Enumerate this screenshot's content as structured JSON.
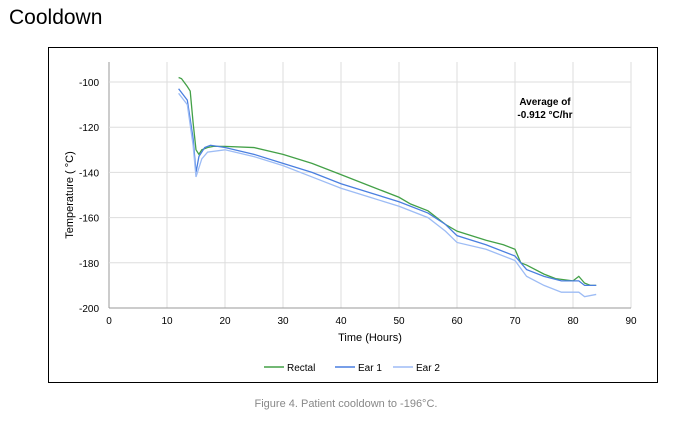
{
  "page_title": "Cooldown",
  "caption": "Figure 4. Patient cooldown to -196°C.",
  "chart_data": {
    "type": "line",
    "title": "",
    "xlabel": "Time (Hours)",
    "ylabel": "Temperature ( °C)",
    "xlim": [
      0,
      90
    ],
    "ylim": [
      -200,
      -95
    ],
    "xticks": [
      0,
      10,
      20,
      30,
      40,
      50,
      60,
      70,
      80,
      90
    ],
    "yticks": [
      -100,
      -120,
      -140,
      -160,
      -180,
      -200
    ],
    "grid": true,
    "legend_position": "bottom",
    "annotation": [
      "Average of",
      "-0.912 °C/hr"
    ],
    "series": [
      {
        "name": "Rectal",
        "color": "#43a047",
        "points": [
          [
            12,
            -98
          ],
          [
            12.5,
            -98.5
          ],
          [
            13.5,
            -102
          ],
          [
            14,
            -104
          ],
          [
            14.5,
            -118
          ],
          [
            15,
            -130
          ],
          [
            15.5,
            -132
          ],
          [
            16,
            -130
          ],
          [
            17,
            -129
          ],
          [
            18,
            -128.5
          ],
          [
            20,
            -128.5
          ],
          [
            25,
            -129
          ],
          [
            30,
            -132
          ],
          [
            35,
            -136
          ],
          [
            40,
            -141
          ],
          [
            45,
            -146
          ],
          [
            50,
            -151
          ],
          [
            52,
            -154
          ],
          [
            55,
            -157
          ],
          [
            58,
            -163
          ],
          [
            60,
            -166
          ],
          [
            65,
            -170
          ],
          [
            68,
            -172
          ],
          [
            70,
            -174
          ],
          [
            71,
            -180
          ],
          [
            72,
            -181
          ],
          [
            75,
            -185
          ],
          [
            77,
            -187
          ],
          [
            80,
            -188
          ],
          [
            81,
            -186
          ],
          [
            82,
            -189
          ],
          [
            83,
            -190
          ],
          [
            84,
            -190
          ]
        ]
      },
      {
        "name": "Ear 1",
        "color": "#4a7fe0",
        "points": [
          [
            12,
            -103
          ],
          [
            13.5,
            -108
          ],
          [
            14.5,
            -125
          ],
          [
            15,
            -140
          ],
          [
            15.5,
            -133
          ],
          [
            16.5,
            -129
          ],
          [
            17.5,
            -128
          ],
          [
            20,
            -129
          ],
          [
            25,
            -132
          ],
          [
            30,
            -136
          ],
          [
            35,
            -140
          ],
          [
            40,
            -145
          ],
          [
            45,
            -149
          ],
          [
            50,
            -153
          ],
          [
            55,
            -158
          ],
          [
            58,
            -163
          ],
          [
            60,
            -168
          ],
          [
            65,
            -172
          ],
          [
            70,
            -177
          ],
          [
            72,
            -183
          ],
          [
            75,
            -186
          ],
          [
            78,
            -188
          ],
          [
            81,
            -188
          ],
          [
            82,
            -190
          ],
          [
            84,
            -190
          ]
        ]
      },
      {
        "name": "Ear 2",
        "color": "#9dbcf5",
        "points": [
          [
            12,
            -105
          ],
          [
            13.5,
            -110
          ],
          [
            14.5,
            -128
          ],
          [
            15,
            -142
          ],
          [
            16,
            -134
          ],
          [
            17,
            -131
          ],
          [
            20,
            -130
          ],
          [
            25,
            -133
          ],
          [
            30,
            -137
          ],
          [
            35,
            -142
          ],
          [
            40,
            -147
          ],
          [
            45,
            -151
          ],
          [
            50,
            -155
          ],
          [
            55,
            -160
          ],
          [
            58,
            -166
          ],
          [
            60,
            -171
          ],
          [
            65,
            -174
          ],
          [
            70,
            -179
          ],
          [
            72,
            -186
          ],
          [
            75,
            -190
          ],
          [
            78,
            -193
          ],
          [
            81,
            -193
          ],
          [
            82,
            -195
          ],
          [
            84,
            -194
          ]
        ]
      }
    ]
  }
}
